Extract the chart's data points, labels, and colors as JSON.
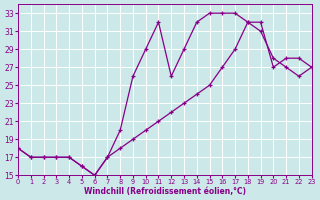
{
  "xlabel": "Windchill (Refroidissement éolien,°C)",
  "bg_color": "#cce8e8",
  "line_color": "#880088",
  "grid_color": "#ffffff",
  "line1_x": [
    0,
    1,
    2,
    3,
    4,
    5,
    6,
    7,
    8,
    9,
    10,
    11,
    12,
    13,
    14,
    15,
    16,
    17,
    18,
    19,
    20,
    21,
    22,
    23
  ],
  "line1_y": [
    18,
    17,
    17,
    17,
    17,
    16,
    15,
    17,
    20,
    26,
    29,
    32,
    26,
    29,
    32,
    33,
    33,
    33,
    32,
    32,
    27,
    28,
    28,
    27
  ],
  "line2_x": [
    0,
    1,
    2,
    3,
    4,
    5,
    6,
    7,
    8,
    9,
    10,
    11,
    12,
    13,
    14,
    15,
    16,
    17,
    18,
    19,
    20,
    21,
    22,
    23
  ],
  "line2_y": [
    18,
    17,
    17,
    17,
    17,
    16,
    15,
    17,
    18,
    19,
    20,
    21,
    22,
    23,
    24,
    25,
    27,
    29,
    32,
    31,
    28,
    27,
    26,
    27
  ],
  "xlim": [
    0,
    23
  ],
  "ylim": [
    15,
    34
  ],
  "yticks": [
    15,
    17,
    19,
    21,
    23,
    25,
    27,
    29,
    31,
    33
  ],
  "xticks": [
    0,
    1,
    2,
    3,
    4,
    5,
    6,
    7,
    8,
    9,
    10,
    11,
    12,
    13,
    14,
    15,
    16,
    17,
    18,
    19,
    20,
    21,
    22,
    23
  ],
  "marker": "+",
  "markersize": 3,
  "linewidth": 0.9
}
